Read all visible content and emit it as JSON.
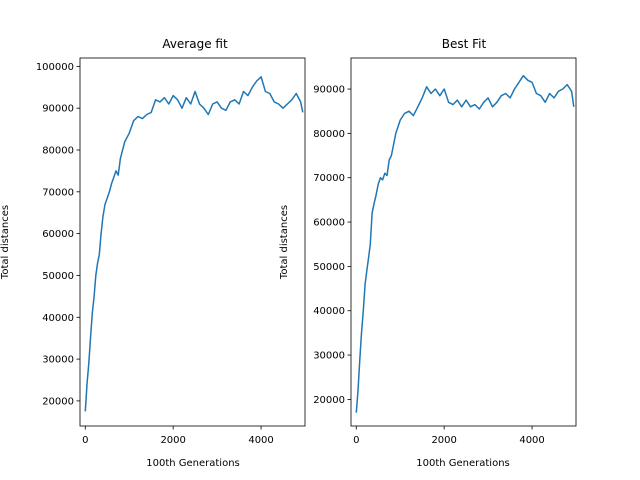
{
  "chart_data": [
    {
      "type": "line",
      "title": "Average fit",
      "xlabel": "100th Generations",
      "ylabel": "Total distances",
      "xlim": [
        -120,
        5000
      ],
      "ylim": [
        14000,
        102000
      ],
      "xticks": [
        0,
        2000,
        4000
      ],
      "yticks": [
        20000,
        30000,
        40000,
        50000,
        60000,
        70000,
        80000,
        90000,
        100000
      ],
      "series": [
        {
          "color": "#1f77b4",
          "x": [
            0,
            40,
            80,
            120,
            160,
            200,
            240,
            280,
            320,
            360,
            400,
            450,
            500,
            550,
            600,
            650,
            700,
            750,
            800,
            900,
            1000,
            1100,
            1200,
            1300,
            1400,
            1500,
            1600,
            1700,
            1800,
            1900,
            2000,
            2100,
            2200,
            2300,
            2400,
            2500,
            2600,
            2700,
            2800,
            2900,
            3000,
            3100,
            3200,
            3300,
            3400,
            3500,
            3600,
            3700,
            3800,
            3900,
            4000,
            4100,
            4200,
            4300,
            4400,
            4500,
            4600,
            4700,
            4800,
            4900,
            4950
          ],
          "values": [
            17500,
            24000,
            29000,
            35000,
            41000,
            45000,
            50000,
            53000,
            55000,
            60000,
            64000,
            67000,
            68500,
            70000,
            72000,
            73500,
            75000,
            74000,
            78000,
            82000,
            84000,
            87000,
            88000,
            87500,
            88500,
            89000,
            92000,
            91500,
            92500,
            91000,
            93000,
            92000,
            90000,
            92500,
            91000,
            94000,
            91000,
            90000,
            88500,
            91000,
            91500,
            90000,
            89500,
            91500,
            92000,
            91000,
            94000,
            93000,
            95000,
            96500,
            97500,
            94000,
            93500,
            91500,
            91000,
            90000,
            91000,
            92000,
            93500,
            91500,
            89000
          ]
        }
      ]
    },
    {
      "type": "line",
      "title": "Best Fit",
      "xlabel": "100th Generations",
      "ylabel": "Total distances",
      "xlim": [
        -120,
        5000
      ],
      "ylim": [
        14000,
        97000
      ],
      "xticks": [
        0,
        2000,
        4000
      ],
      "yticks": [
        20000,
        30000,
        40000,
        50000,
        60000,
        70000,
        80000,
        90000
      ],
      "series": [
        {
          "color": "#1f77b4",
          "x": [
            0,
            40,
            80,
            120,
            160,
            200,
            240,
            280,
            320,
            360,
            400,
            450,
            500,
            550,
            600,
            650,
            700,
            750,
            800,
            900,
            1000,
            1100,
            1200,
            1300,
            1400,
            1500,
            1600,
            1700,
            1800,
            1900,
            2000,
            2100,
            2200,
            2300,
            2400,
            2500,
            2600,
            2700,
            2800,
            2900,
            3000,
            3100,
            3200,
            3300,
            3400,
            3500,
            3600,
            3700,
            3800,
            3900,
            4000,
            4100,
            4200,
            4300,
            4400,
            4500,
            4600,
            4700,
            4800,
            4900,
            4950
          ],
          "values": [
            17000,
            22000,
            29000,
            35000,
            40000,
            46000,
            49000,
            52000,
            55000,
            62000,
            64000,
            66000,
            68500,
            70000,
            69500,
            71000,
            70500,
            74000,
            75000,
            80000,
            83000,
            84500,
            85000,
            84000,
            86000,
            88000,
            90500,
            89000,
            90000,
            88500,
            90000,
            87000,
            86500,
            87500,
            86000,
            87500,
            86000,
            86500,
            85500,
            87000,
            88000,
            86000,
            87000,
            88500,
            89000,
            88000,
            90000,
            91500,
            93000,
            92000,
            91500,
            89000,
            88500,
            87000,
            89000,
            88000,
            89500,
            90000,
            91000,
            89500,
            86000
          ]
        }
      ]
    }
  ]
}
